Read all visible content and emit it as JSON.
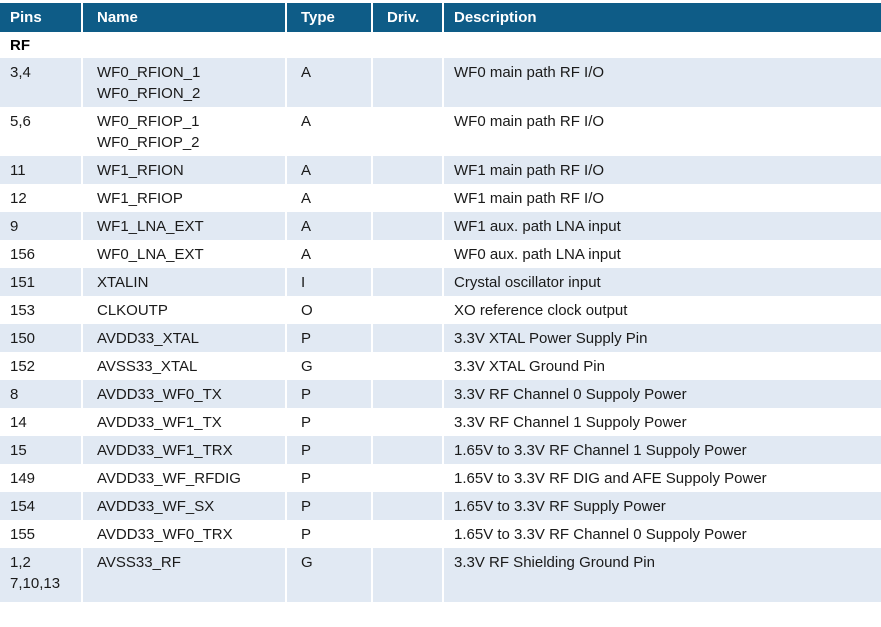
{
  "colors": {
    "header_bg": "#0e5c87",
    "header_text": "#ffffff",
    "band_bg": "#e1e9f3",
    "body_text": "#1a1a1a"
  },
  "table": {
    "columns": [
      "Pins",
      "Name",
      "Type",
      "Driv.",
      "Description"
    ],
    "section_label": "RF",
    "rows": [
      {
        "pins": [
          "3,4"
        ],
        "name": [
          "WF0_RFION_1",
          "WF0_RFION_2"
        ],
        "type": "A",
        "driv": "",
        "desc": "WF0 main path RF I/O"
      },
      {
        "pins": [
          "5,6"
        ],
        "name": [
          "WF0_RFIOP_1",
          "WF0_RFIOP_2"
        ],
        "type": "A",
        "driv": "",
        "desc": "WF0 main path RF I/O"
      },
      {
        "pins": [
          "11"
        ],
        "name": [
          "WF1_RFION"
        ],
        "type": "A",
        "driv": "",
        "desc": "WF1 main path RF I/O"
      },
      {
        "pins": [
          "12"
        ],
        "name": [
          "WF1_RFIOP"
        ],
        "type": "A",
        "driv": "",
        "desc": "WF1 main path RF I/O"
      },
      {
        "pins": [
          "9"
        ],
        "name": [
          "WF1_LNA_EXT"
        ],
        "type": "A",
        "driv": "",
        "desc": "WF1 aux. path LNA input"
      },
      {
        "pins": [
          "156"
        ],
        "name": [
          "WF0_LNA_EXT"
        ],
        "type": "A",
        "driv": "",
        "desc": "WF0 aux. path LNA input"
      },
      {
        "pins": [
          "151"
        ],
        "name": [
          "XTALIN"
        ],
        "type": "I",
        "driv": "",
        "desc": "Crystal oscillator input"
      },
      {
        "pins": [
          "153"
        ],
        "name": [
          "CLKOUTP"
        ],
        "type": "O",
        "driv": "",
        "desc": "XO reference clock output"
      },
      {
        "pins": [
          "150"
        ],
        "name": [
          "AVDD33_XTAL"
        ],
        "type": "P",
        "driv": "",
        "desc": "3.3V XTAL Power Supply Pin"
      },
      {
        "pins": [
          "152"
        ],
        "name": [
          "AVSS33_XTAL"
        ],
        "type": "G",
        "driv": "",
        "desc": "3.3V XTAL Ground Pin"
      },
      {
        "pins": [
          "8"
        ],
        "name": [
          "AVDD33_WF0_TX"
        ],
        "type": "P",
        "driv": "",
        "desc": "3.3V RF Channel 0 Suppoly Power"
      },
      {
        "pins": [
          "14"
        ],
        "name": [
          "AVDD33_WF1_TX"
        ],
        "type": "P",
        "driv": "",
        "desc": "3.3V RF Channel 1 Suppoly Power"
      },
      {
        "pins": [
          "15"
        ],
        "name": [
          "AVDD33_WF1_TRX"
        ],
        "type": "P",
        "driv": "",
        "desc": "1.65V to 3.3V RF Channel 1 Suppoly Power"
      },
      {
        "pins": [
          "149"
        ],
        "name": [
          "AVDD33_WF_RFDIG"
        ],
        "type": "P",
        "driv": "",
        "desc": "1.65V to 3.3V RF DIG and AFE Suppoly Power"
      },
      {
        "pins": [
          "154"
        ],
        "name": [
          "AVDD33_WF_SX"
        ],
        "type": "P",
        "driv": "",
        "desc": "1.65V to 3.3V RF Supply Power"
      },
      {
        "pins": [
          "155"
        ],
        "name": [
          "AVDD33_WF0_TRX"
        ],
        "type": "P",
        "driv": "",
        "desc": "1.65V to 3.3V RF Channel 0 Suppoly Power"
      },
      {
        "pins": [
          "1,2",
          "7,10,13"
        ],
        "name": [
          "AVSS33_RF"
        ],
        "type": "G",
        "driv": "",
        "desc": "3.3V RF Shielding Ground Pin"
      }
    ]
  }
}
